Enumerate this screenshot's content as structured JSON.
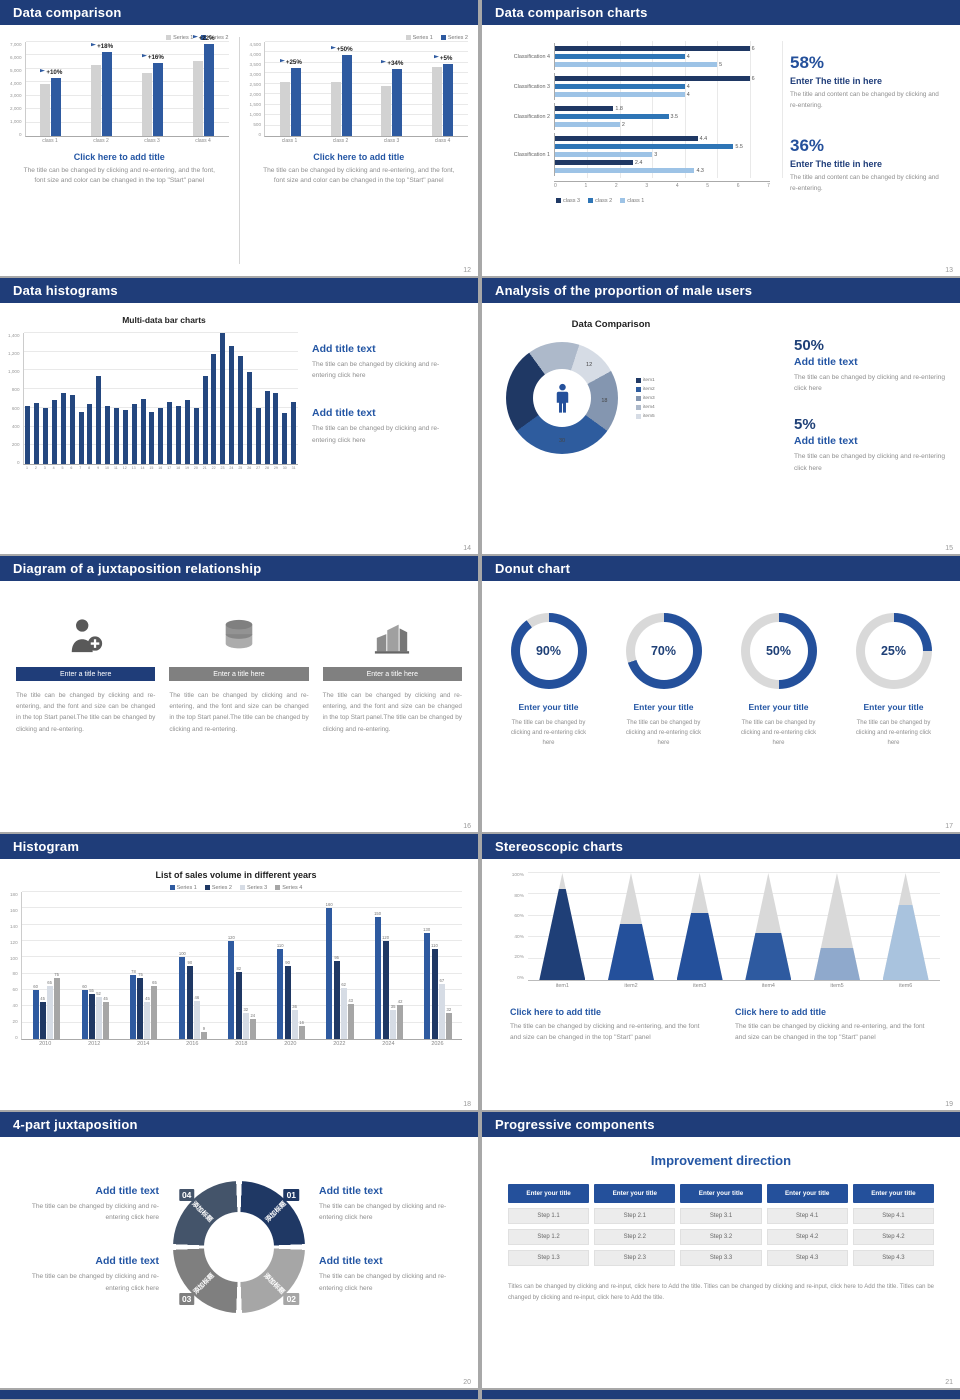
{
  "theme": {
    "header_bg": "#1f3d79",
    "accent": "#2456a4",
    "navy": "#1f3864",
    "mid_blue": "#2e75b6",
    "light_blue": "#9dc3e6",
    "bar_gray": "#d2d2d2",
    "donut_blue": "#24509b",
    "track_gray": "#d9d9d9",
    "gray_text": "#8f8f8f"
  },
  "s12": {
    "title": "Data comparison",
    "page": "12",
    "charts": [
      {
        "legend": [
          {
            "label": "Series 1",
            "color": "#d2d2d2"
          },
          {
            "label": "Series 2",
            "color": "#2e5aa0"
          }
        ],
        "yticks": [
          "7,000",
          "6,000",
          "5,000",
          "4,000",
          "3,000",
          "2,000",
          "1,000",
          "0"
        ],
        "ymax": 7000,
        "cats": [
          "class 1",
          "class 2",
          "class 3",
          "class 4"
        ],
        "series": [
          {
            "name": "Series 1",
            "color": "#d2d2d2",
            "values": [
              3900,
              5300,
              4700,
              5600
            ]
          },
          {
            "name": "Series 2",
            "color": "#2e5aa0",
            "values": [
              4290,
              6254,
              5452,
              6832
            ]
          }
        ],
        "growth": [
          "+10%",
          "+18%",
          "+16%",
          "+22%"
        ],
        "caption_title": "Click here to add title",
        "caption_body": "The title can be changed by clicking and re-entering, and the font, font size and color can be changed in the top \"Start\" panel"
      },
      {
        "legend": [
          {
            "label": "Series 1",
            "color": "#d2d2d2"
          },
          {
            "label": "Series 2",
            "color": "#2e5aa0"
          }
        ],
        "yticks": [
          "4,500",
          "4,000",
          "3,500",
          "3,000",
          "2,500",
          "2,000",
          "1,500",
          "1,000",
          "500",
          "0"
        ],
        "ymax": 4500,
        "cats": [
          "class 1",
          "class 2",
          "class 3",
          "class 4"
        ],
        "series": [
          {
            "name": "Series 1",
            "color": "#d2d2d2",
            "values": [
              2600,
              2600,
              2400,
              3300
            ]
          },
          {
            "name": "Series 2",
            "color": "#2e5aa0",
            "values": [
              3250,
              3900,
              3216,
              3465
            ]
          }
        ],
        "growth": [
          "+25%",
          "+50%",
          "+34%",
          "+5%"
        ],
        "caption_title": "Click here to add title",
        "caption_body": "The title can be changed by clicking and re-entering, and the font, font size and color can be changed in the top \"Start\" panel"
      }
    ]
  },
  "s13": {
    "title": "Data comparison charts",
    "page": "13",
    "chart": {
      "cats": [
        "Classification 4",
        "Classification 3",
        "Classification 2",
        "Classification 1"
      ],
      "rows": [
        [
          {
            "v": 6,
            "c": "#1f3864"
          },
          {
            "v": 4,
            "c": "#2e75b6"
          },
          {
            "v": 5,
            "c": "#9dc3e6"
          }
        ],
        [
          {
            "v": 6,
            "c": "#1f3864"
          },
          {
            "v": 4,
            "c": "#2e75b6"
          },
          {
            "v": 4,
            "c": "#9dc3e6"
          }
        ],
        [
          {
            "v": 1.8,
            "c": "#1f3864"
          },
          {
            "v": 3.5,
            "c": "#2e75b6"
          },
          {
            "v": 2,
            "c": "#9dc3e6"
          }
        ],
        [
          {
            "v": 4.4,
            "c": "#1f3864"
          },
          {
            "v": 5.5,
            "c": "#2e75b6"
          },
          {
            "v": 3,
            "c": "#9dc3e6"
          },
          {
            "v": 2.4,
            "c": "#1f3864"
          },
          {
            "v": 4.3,
            "c": "#9dc3e6"
          }
        ]
      ],
      "xticks": [
        "0",
        "1",
        "2",
        "3",
        "4",
        "5",
        "6",
        "7"
      ],
      "xmax": 7,
      "legend": [
        {
          "label": "class 3",
          "color": "#1f3864"
        },
        {
          "label": "class 2",
          "color": "#2e75b6"
        },
        {
          "label": "class 1",
          "color": "#9dc3e6"
        }
      ]
    },
    "stats": [
      {
        "pct": "58%",
        "title": "Enter The title in here",
        "body": "The title and content can be changed by clicking and re-entering."
      },
      {
        "pct": "36%",
        "title": "Enter The title in here",
        "body": "The title and content can be changed by clicking and re-entering."
      }
    ]
  },
  "s14": {
    "title": "Data histograms",
    "page": "14",
    "chart_title": "Multi-data bar charts",
    "chart": {
      "yticks": [
        "1,400",
        "1,200",
        "1,000",
        "800",
        "600",
        "400",
        "200",
        "0"
      ],
      "ymax": 1400,
      "cats": [
        "1",
        "2",
        "3",
        "4",
        "5",
        "6",
        "7",
        "8",
        "9",
        "10",
        "11",
        "12",
        "13",
        "14",
        "15",
        "16",
        "17",
        "18",
        "19",
        "20",
        "21",
        "22",
        "23",
        "24",
        "25",
        "26",
        "27",
        "28",
        "29",
        "30",
        "31"
      ],
      "series": [
        {
          "name": "values",
          "color": "#24477f",
          "values": [
            620,
            650,
            600,
            680,
            760,
            740,
            560,
            640,
            940,
            620,
            600,
            580,
            640,
            700,
            560,
            600,
            660,
            620,
            680,
            600,
            940,
            1180,
            1400,
            1260,
            1150,
            980,
            600,
            780,
            760,
            540,
            660
          ]
        }
      ]
    },
    "blocks": [
      {
        "title": "Add title text",
        "body": "The title can be changed by clicking and re-entering click here"
      },
      {
        "title": "Add title text",
        "body": "The title can be changed by clicking and re-entering click here"
      }
    ]
  },
  "s15": {
    "title": "Analysis of the proportion of male users",
    "page": "15",
    "chart_title": "Data Comparison",
    "center_icon": "male-icon",
    "donut": {
      "segs": [
        {
          "v": 12,
          "label": "12",
          "color": "#d6dce5"
        },
        {
          "v": 18,
          "label": "18",
          "color": "#8496b0"
        },
        {
          "v": 30,
          "label": "30",
          "color": "#2e5c9e"
        },
        {
          "v": 25,
          "label": "",
          "color": "#1f3864"
        },
        {
          "v": 15,
          "label": "",
          "color": "#adb9ca"
        }
      ]
    },
    "legend": [
      {
        "label": "item1",
        "color": "#1f3864"
      },
      {
        "label": "item2",
        "color": "#2e5c9e"
      },
      {
        "label": "item3",
        "color": "#8496b0"
      },
      {
        "label": "item4",
        "color": "#adb9ca"
      },
      {
        "label": "item5",
        "color": "#d6dce5"
      }
    ],
    "stats": [
      {
        "pct": "50%",
        "title": "Add title text",
        "body": "The title can be changed by clicking and re-entering click here"
      },
      {
        "pct": "5%",
        "title": "Add title text",
        "body": "The title can be changed by clicking and re-entering click here"
      }
    ]
  },
  "s16": {
    "title": "Diagram of a juxtaposition relationship",
    "page": "16",
    "items": [
      {
        "icon": "nurse-icon",
        "bar_color": "#1f3d79",
        "bar_label": "Enter a title here",
        "body": "The title can be changed by clicking and re-entering, and the font and size can be changed in the top Start panel.The title can be changed by clicking and re-entering."
      },
      {
        "icon": "database-icon",
        "bar_color": "#808080",
        "bar_label": "Enter a title here",
        "body": "The title can be changed by clicking and re-entering, and the font and size can be changed in the top Start panel.The title can be changed by clicking and re-entering."
      },
      {
        "icon": "building-icon",
        "bar_color": "#808080",
        "bar_label": "Enter a title here",
        "body": "The title can be changed by clicking and re-entering, and the font and size can be changed in the top Start panel.The title can be changed by clicking and re-entering."
      }
    ]
  },
  "s17": {
    "title": "Donut chart",
    "page": "17",
    "donuts": [
      {
        "pct": 90,
        "pct_label": "90%",
        "title": "Enter your title",
        "body": "The title can be changed by clicking and re-entering click here"
      },
      {
        "pct": 70,
        "pct_label": "70%",
        "title": "Enter your title",
        "body": "The title can be changed by clicking and re-entering click here"
      },
      {
        "pct": 50,
        "pct_label": "50%",
        "title": "Enter your title",
        "body": "The title can be changed by clicking and re-entering click here"
      },
      {
        "pct": 25,
        "pct_label": "25%",
        "title": "Enter your title",
        "body": "The title can be changed by clicking and re-entering click here"
      }
    ]
  },
  "s18": {
    "title": "Histogram",
    "page": "18",
    "chart_title": "List of sales volume in different years",
    "chart": {
      "legend": [
        {
          "label": "Series 1",
          "color": "#2e5aa0"
        },
        {
          "label": "Series 2",
          "color": "#1f3864"
        },
        {
          "label": "Series 3",
          "color": "#d6dce5"
        },
        {
          "label": "Series 4",
          "color": "#a6a6a6"
        }
      ],
      "yticks": [
        "180",
        "160",
        "140",
        "120",
        "100",
        "80",
        "60",
        "40",
        "20",
        "0"
      ],
      "ymax": 180,
      "cats": [
        "2010",
        "2012",
        "2014",
        "2016",
        "2018",
        "2020",
        "2022",
        "2024",
        "2026"
      ],
      "series": [
        {
          "name": "Series 1",
          "color": "#2e5aa0",
          "values": [
            60,
            60,
            78,
            100,
            120,
            110,
            160,
            150,
            130
          ]
        },
        {
          "name": "Series 2",
          "color": "#1f3864",
          "values": [
            45,
            55,
            75,
            90,
            82,
            90,
            95,
            120,
            110
          ]
        },
        {
          "name": "Series 3",
          "color": "#d6dce5",
          "values": [
            65,
            52,
            45,
            46,
            32,
            36,
            62,
            35,
            67
          ]
        },
        {
          "name": "Series 4",
          "color": "#a6a6a6",
          "values": [
            75,
            45,
            65,
            9,
            24,
            16,
            43,
            42,
            32
          ]
        }
      ]
    }
  },
  "s19": {
    "title": "Stereoscopic charts",
    "page": "19",
    "chart": {
      "yticks": [
        "100%",
        "80%",
        "60%",
        "40%",
        "20%",
        "0%"
      ],
      "items": [
        {
          "label": "item1",
          "pct": 85,
          "color": "#1f3f77"
        },
        {
          "label": "item2",
          "pct": 52,
          "color": "#24509b"
        },
        {
          "label": "item3",
          "pct": 63,
          "color": "#24509b"
        },
        {
          "label": "item4",
          "pct": 44,
          "color": "#2e5aa0"
        },
        {
          "label": "item5",
          "pct": 30,
          "color": "#8fa9cc"
        },
        {
          "label": "item6",
          "pct": 70,
          "color": "#a9c3de"
        }
      ]
    },
    "blocks": [
      {
        "title": "Click here to add title",
        "body": "The title can be changed by clicking and re-entering, and the font and size can be changed in the top \"Start\" panel"
      },
      {
        "title": "Click here to add title",
        "body": "The title can be changed by clicking and re-entering, and the font and size can be changed in the top \"Start\" panel"
      }
    ]
  },
  "s20": {
    "title": "4-part juxtaposition",
    "page": "20",
    "ring": {
      "segments": [
        {
          "num": "01",
          "label": "添加标题",
          "color": "#1f3864"
        },
        {
          "num": "02",
          "label": "添加标题",
          "color": "#a6a6a6"
        },
        {
          "num": "03",
          "label": "添加标题",
          "color": "#7f7f7f"
        },
        {
          "num": "04",
          "label": "添加标题",
          "color": "#44546a"
        }
      ]
    },
    "blocks": [
      {
        "title": "Add title text",
        "body": "The title can be changed by clicking and re-entering click here"
      },
      {
        "title": "Add title text",
        "body": "The title can be changed by clicking and re-entering click here"
      },
      {
        "title": "Add title text",
        "body": "The title can be changed by clicking and re-entering click here"
      },
      {
        "title": "Add title text",
        "body": "The title can be changed by clicking and re-entering click here"
      }
    ]
  },
  "s21": {
    "title": "Progressive components",
    "page": "21",
    "heading": "Improvement direction",
    "columns": [
      {
        "button": "Enter your title",
        "steps": [
          "Step 1.1",
          "Step 1.2",
          "Step 1.3"
        ]
      },
      {
        "button": "Enter your title",
        "steps": [
          "Step 2.1",
          "Step 2.2",
          "Step 2.3"
        ]
      },
      {
        "button": "Enter your title",
        "steps": [
          "Step 3.1",
          "Step 3.2",
          "Step 3.3"
        ]
      },
      {
        "button": "Enter your title",
        "steps": [
          "Step 4.1",
          "Step 4.2",
          "Step 4.3"
        ]
      },
      {
        "button": "Enter your title",
        "steps": [
          "Step 4.1",
          "Step 4.2",
          "Step 4.3"
        ]
      }
    ],
    "footer": "Titles can be changed by clicking and re-input, click here to Add the title. Titles can be changed by clicking and re-input, click here to Add the title. Titles can be changed by clicking and re-input, click here to Add the title."
  }
}
